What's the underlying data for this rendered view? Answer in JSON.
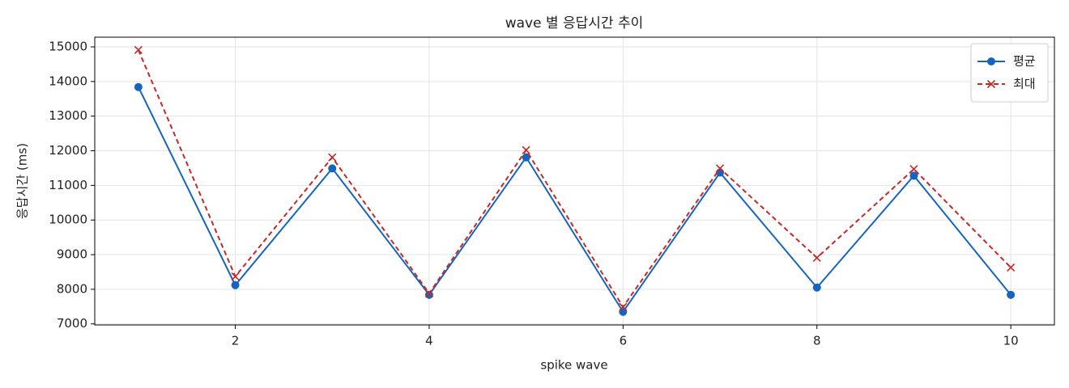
{
  "chart_data": {
    "type": "line",
    "title": "wave 별 응답시간 추이",
    "x_label": "spike wave",
    "y_label": "응답시간 (ms)",
    "x": [
      1,
      2,
      3,
      4,
      5,
      6,
      7,
      8,
      9,
      10
    ],
    "series": [
      {
        "name": "평균",
        "color": "#1565c0",
        "marker": "circle",
        "dash": false,
        "values": [
          13840,
          8120,
          11490,
          7840,
          11810,
          7350,
          11370,
          8050,
          11280,
          7840
        ]
      },
      {
        "name": "최대",
        "color": "#c62828",
        "marker": "x",
        "dash": true,
        "values": [
          14910,
          8370,
          11810,
          7880,
          12020,
          7490,
          11490,
          8910,
          11470,
          8630
        ]
      }
    ],
    "xlim": [
      0.55,
      10.45
    ],
    "xticks": [
      2,
      4,
      6,
      8,
      10
    ],
    "ylim": [
      6970,
      15280
    ],
    "yticks": [
      7000,
      8000,
      9000,
      10000,
      11000,
      12000,
      13000,
      14000,
      15000
    ],
    "grid": true,
    "legend": "upper right"
  }
}
